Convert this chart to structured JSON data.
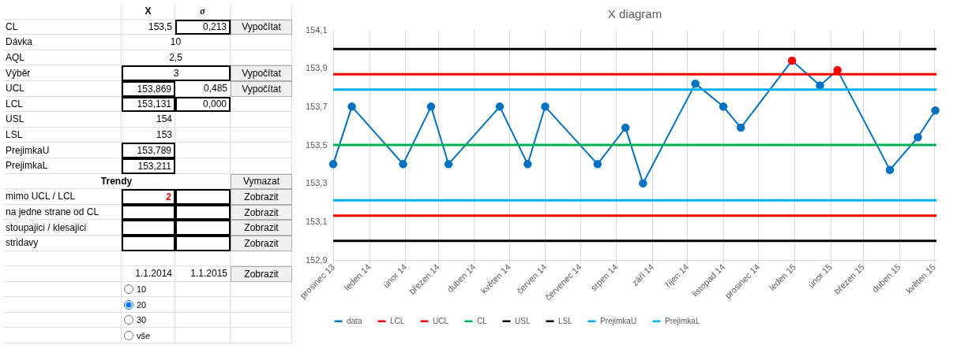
{
  "chart_data": [
    {
      "type": "other",
      "annotations": [
        "X",
        "σ",
        "CL",
        "153,5",
        "0,213",
        "Vypočítat",
        "Dávka",
        "10",
        "AQL",
        "2,5",
        "Výběr",
        "3",
        "Vypočítat",
        "UCL",
        "153,869",
        "0,485",
        "Vypočítat",
        "LCL",
        "153,131",
        "0,000",
        "USL",
        "154",
        "LSL",
        "153",
        "PrejimkaU",
        "153,789",
        "PrejimkaL",
        "153,211",
        "Trendy",
        "Vymazat",
        "mimo UCL / LCL",
        "2",
        "Zobrazit",
        "na jedne strane od CL",
        "Zobrazit",
        "stoupajici / klesajici",
        "Zobrazit",
        "stridavy",
        "Zobrazit",
        "1.1.2014",
        "1.1.2015",
        "Zobrazit",
        "10",
        "20",
        "30",
        "vše"
      ]
    },
    {
      "type": "line",
      "title": "X diagram",
      "xlim": [
        "2013-12-01",
        "2015-05-03"
      ],
      "xticks": [
        {
          "value": "2013-12-01",
          "label": "prosinec 13"
        },
        {
          "value": "2014-01-01",
          "label": "leden 14"
        },
        {
          "value": "2014-02-01",
          "label": "únor 14"
        },
        {
          "value": "2014-03-01",
          "label": "březen 14"
        },
        {
          "value": "2014-04-01",
          "label": "duben 14"
        },
        {
          "value": "2014-05-01",
          "label": "květen 14"
        },
        {
          "value": "2014-06-01",
          "label": "červen 14"
        },
        {
          "value": "2014-07-01",
          "label": "červenec 14"
        },
        {
          "value": "2014-08-01",
          "label": "srpen 14"
        },
        {
          "value": "2014-09-01",
          "label": "září 14"
        },
        {
          "value": "2014-10-01",
          "label": "říjen 14"
        },
        {
          "value": "2014-11-01",
          "label": "listopad 14"
        },
        {
          "value": "2014-12-01",
          "label": "prosinec 14"
        },
        {
          "value": "2015-01-01",
          "label": "leden 15"
        },
        {
          "value": "2015-02-01",
          "label": "únor 15"
        },
        {
          "value": "2015-03-01",
          "label": "březen 15"
        },
        {
          "value": "2015-04-01",
          "label": "duben 15"
        },
        {
          "value": "2015-05-01",
          "label": "květen 15"
        }
      ],
      "ylim": [
        152.9,
        154.1
      ],
      "yticks": [
        {
          "value": 152.9,
          "label": "152,9"
        },
        {
          "value": 153.1,
          "label": "153,1"
        },
        {
          "value": 153.3,
          "label": "153,3"
        },
        {
          "value": 153.5,
          "label": "153,5"
        },
        {
          "value": 153.7,
          "label": "153,7"
        },
        {
          "value": 153.9,
          "label": "153,9"
        },
        {
          "value": 154.1,
          "label": "154,1"
        }
      ],
      "grid": "x",
      "legend": "bottom",
      "series": [
        {
          "name": "data",
          "color": "#0070c0",
          "marker": "circle",
          "x": [
            "2013-12-01",
            "2013-12-17",
            "2014-01-30",
            "2014-02-23",
            "2014-03-10",
            "2014-04-23",
            "2014-05-17",
            "2014-06-01",
            "2014-07-16",
            "2014-08-09",
            "2014-08-24",
            "2014-10-08",
            "2014-11-01",
            "2014-11-16",
            "2014-12-30",
            "2015-01-23",
            "2015-02-07",
            "2015-03-24",
            "2015-04-17",
            "2015-05-02"
          ],
          "values": [
            153.4,
            153.7,
            153.4,
            153.7,
            153.4,
            153.7,
            153.4,
            153.7,
            153.4,
            153.59,
            153.3,
            153.82,
            153.7,
            153.59,
            153.94,
            153.81,
            153.89,
            153.37,
            153.54,
            153.68
          ],
          "colors": [
            "#0070c0",
            "#0070c0",
            "#0070c0",
            "#0070c0",
            "#0070c0",
            "#0070c0",
            "#0070c0",
            "#0070c0",
            "#0070c0",
            "#0070c0",
            "#0070c0",
            "#0070c0",
            "#0070c0",
            "#0070c0",
            "#ff0000",
            "#0070c0",
            "#ff0000",
            "#0070c0",
            "#0070c0",
            "#0070c0"
          ]
        },
        {
          "name": "LCL",
          "color": "#ff0000",
          "x": [
            "2013-12-01",
            "2015-05-03"
          ],
          "values": [
            153.131,
            153.131
          ]
        },
        {
          "name": "UCL",
          "color": "#ff0000",
          "x": [
            "2013-12-01",
            "2015-05-03"
          ],
          "values": [
            153.869,
            153.869
          ]
        },
        {
          "name": "CL",
          "color": "#00b050",
          "x": [
            "2013-12-01",
            "2015-05-03"
          ],
          "values": [
            153.5,
            153.5
          ]
        },
        {
          "name": "USL",
          "color": "#000000",
          "x": [
            "2013-12-01",
            "2015-05-03"
          ],
          "values": [
            154,
            154
          ]
        },
        {
          "name": "LSL",
          "color": "#000000",
          "x": [
            "2013-12-01",
            "2015-05-03"
          ],
          "values": [
            153,
            153
          ]
        },
        {
          "name": "PrejimkaU",
          "color": "#00b0f0",
          "x": [
            "2013-12-01",
            "2015-05-03"
          ],
          "values": [
            153.789,
            153.789
          ]
        },
        {
          "name": "PrejimkaL",
          "color": "#00b0f0",
          "x": [
            "2013-12-01",
            "2015-05-03"
          ],
          "values": [
            153.211,
            153.211
          ]
        }
      ]
    }
  ]
}
